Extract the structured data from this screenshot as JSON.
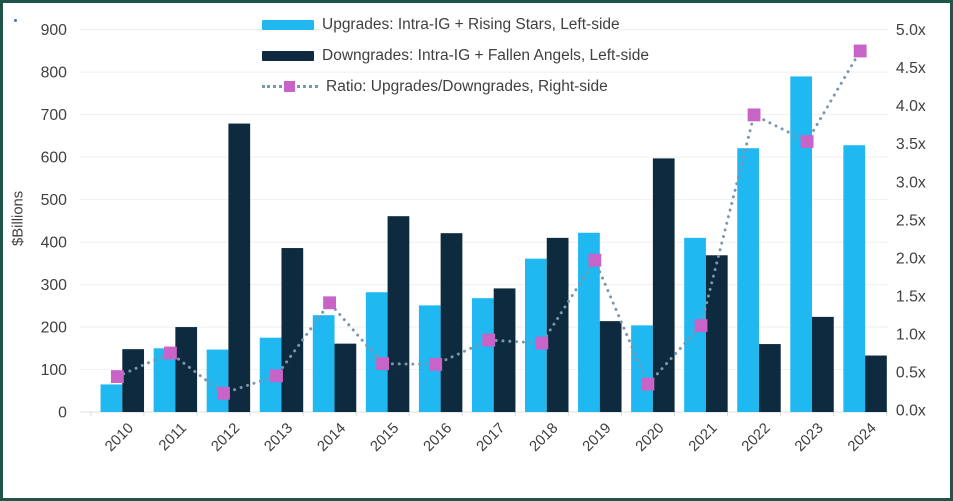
{
  "frame": {
    "border_color": "#1f5548",
    "background": "#ffffff"
  },
  "colors": {
    "upgrades_bar": "#1fb8f0",
    "downgrades_bar": "#0e2a3e",
    "ratio_line": "#7d96ad",
    "ratio_marker": "#c864c8",
    "gridline": "#efefef",
    "text": "#404040"
  },
  "chart_data": {
    "type": "combo-bar-line",
    "title": "",
    "categories": [
      "2010",
      "2011",
      "2012",
      "2013",
      "2014",
      "2015",
      "2016",
      "2017",
      "2018",
      "2019",
      "2020",
      "2021",
      "2022",
      "2023",
      "2024"
    ],
    "series": [
      {
        "name": "Upgrades: Intra-IG + Rising Stars, Left-side",
        "type": "bar",
        "axis": "left",
        "color": "#1fb8f0",
        "values": [
          65,
          150,
          147,
          175,
          228,
          282,
          251,
          268,
          361,
          422,
          204,
          410,
          621,
          790,
          628
        ]
      },
      {
        "name": "Downgrades: Intra-IG + Fallen Angels, Left-side",
        "type": "bar",
        "axis": "left",
        "color": "#0e2a3e",
        "values": [
          148,
          200,
          679,
          386,
          161,
          461,
          421,
          291,
          410,
          214,
          597,
          369,
          160,
          224,
          133
        ]
      },
      {
        "name": "Ratio: Upgrades/Downgrades, Right-side",
        "type": "line",
        "axis": "right",
        "color": "#7d96ad",
        "marker": "square",
        "marker_color": "#c864c8",
        "values": [
          0.44,
          0.75,
          0.22,
          0.45,
          1.41,
          0.61,
          0.6,
          0.92,
          0.88,
          1.97,
          0.34,
          1.11,
          3.88,
          3.53,
          4.72
        ]
      }
    ],
    "left_axis": {
      "label": "$Billions",
      "min": 0,
      "max": 900,
      "step": 100,
      "tick_labels": [
        "0",
        "100",
        "200",
        "300",
        "400",
        "500",
        "600",
        "700",
        "800",
        "900"
      ]
    },
    "right_axis": {
      "label": "",
      "min": 0,
      "max": 5,
      "step": 0.5,
      "tick_labels": [
        "0.0x",
        "0.5x",
        "1.0x",
        "1.5x",
        "2.0x",
        "2.5x",
        "3.0x",
        "3.5x",
        "4.0x",
        "4.5x",
        "5.0x"
      ]
    },
    "grid": true,
    "legend_position": "top-center"
  }
}
